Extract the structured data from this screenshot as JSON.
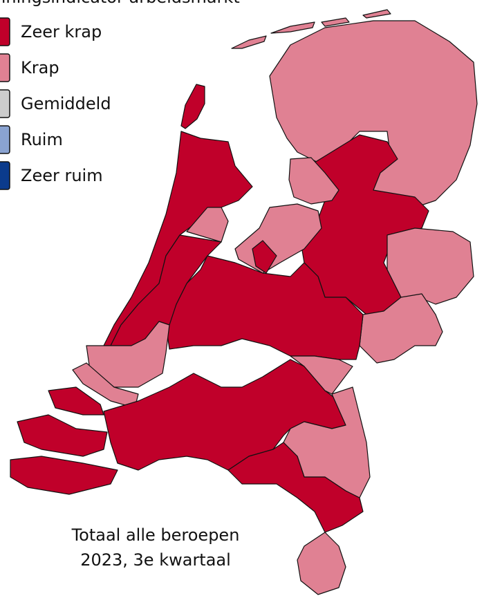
{
  "map": {
    "title": "Spanningsindicator arbeidsmarkt",
    "legend": [
      {
        "name": "Zeer krap",
        "color": "#c0002a"
      },
      {
        "name": "Krap",
        "color": "#e08193"
      },
      {
        "name": "Gemiddeld",
        "color": "#cccccc"
      },
      {
        "name": "Ruim",
        "color": "#8aa3d1"
      },
      {
        "name": "Zeer ruim",
        "color": "#0b3b8c"
      }
    ],
    "caption": [
      "Totaal alle beroepen",
      "2023, 3e kwartaal"
    ]
  }
}
